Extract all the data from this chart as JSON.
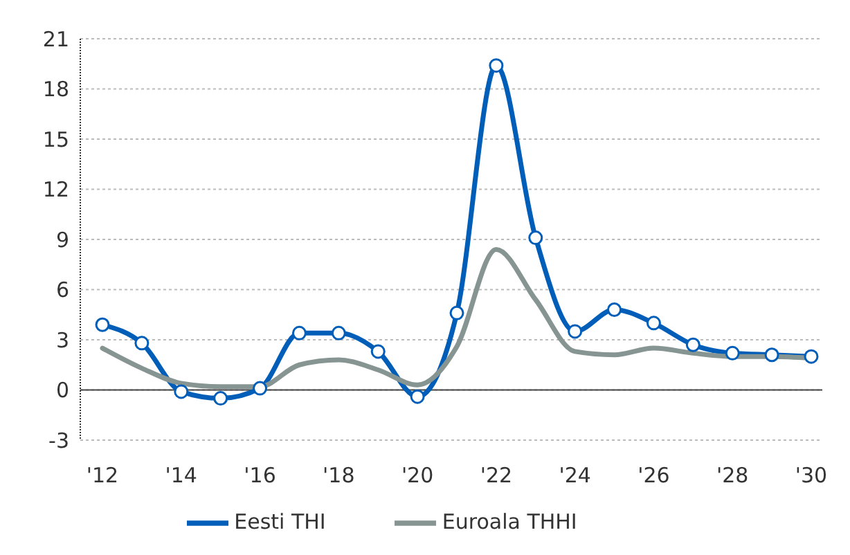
{
  "chart_data": {
    "type": "line",
    "categories": [
      "'12",
      null,
      "'14",
      null,
      "'16",
      null,
      "'18",
      null,
      "'20",
      null,
      "'22",
      null,
      "'24",
      null,
      "'26",
      null,
      "'28",
      null,
      "'30"
    ],
    "series": [
      {
        "name": "Eesti THI",
        "color": "#005eb8",
        "marker": "circle",
        "values": [
          3.9,
          2.8,
          -0.1,
          -0.5,
          0.1,
          3.4,
          3.4,
          2.3,
          -0.4,
          4.6,
          19.4,
          9.1,
          3.5,
          4.8,
          4.0,
          2.7,
          2.2,
          2.1,
          2.0
        ]
      },
      {
        "name": "Euroala THHI",
        "color": "#869592",
        "marker": "none",
        "values": [
          2.5,
          1.3,
          0.4,
          0.2,
          0.2,
          1.5,
          1.8,
          1.2,
          0.3,
          2.6,
          8.4,
          5.4,
          2.3,
          2.1,
          2.5,
          2.2,
          2.0,
          2.0,
          1.9
        ]
      }
    ],
    "ylim": [
      -3,
      21
    ],
    "yticks": [
      -3,
      0,
      3,
      6,
      9,
      12,
      15,
      18,
      21
    ],
    "grid": "y",
    "legend": "bottom",
    "line_style": "solid"
  }
}
